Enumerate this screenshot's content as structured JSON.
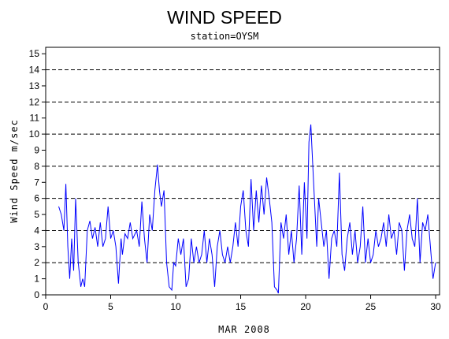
{
  "chart_data": {
    "type": "line",
    "title": "WIND SPEED",
    "subtitle": "station=OYSM",
    "xlabel": "MAR 2008",
    "ylabel": "Wind Speed m/sec",
    "xlim": [
      0,
      30.3
    ],
    "ylim": [
      0,
      15.4
    ],
    "x_ticks": [
      0,
      5,
      10,
      15,
      20,
      25,
      30
    ],
    "y_ticks": [
      0,
      1,
      2,
      3,
      4,
      5,
      6,
      7,
      8,
      9,
      10,
      11,
      12,
      13,
      14,
      15
    ],
    "grid_y_dashed": [
      0,
      2,
      4,
      6,
      8,
      10,
      12,
      14
    ],
    "line_color": "#0000ff",
    "series": [
      {
        "x": [
          1.0,
          1.2,
          1.4,
          1.55,
          1.7,
          1.85,
          2.0,
          2.15,
          2.3,
          2.5,
          2.7,
          2.85,
          3.0,
          3.2,
          3.4,
          3.6,
          3.8,
          4.0,
          4.2,
          4.4,
          4.6,
          4.8,
          5.0,
          5.2,
          5.4,
          5.6,
          5.8,
          5.9,
          6.1,
          6.3,
          6.5,
          6.7,
          7.0,
          7.2,
          7.4,
          7.6,
          7.8,
          8.0,
          8.2,
          8.4,
          8.6,
          8.75,
          8.9,
          9.1,
          9.3,
          9.5,
          9.7,
          9.85,
          10.0,
          10.2,
          10.4,
          10.6,
          10.8,
          11.0,
          11.2,
          11.4,
          11.6,
          11.8,
          12.0,
          12.2,
          12.4,
          12.6,
          12.8,
          13.0,
          13.2,
          13.4,
          13.6,
          13.8,
          14.0,
          14.2,
          14.4,
          14.6,
          14.8,
          15.0,
          15.2,
          15.4,
          15.6,
          15.8,
          16.0,
          16.2,
          16.4,
          16.6,
          16.8,
          17.0,
          17.2,
          17.4,
          17.6,
          17.8,
          17.9,
          18.1,
          18.3,
          18.5,
          18.7,
          18.9,
          19.1,
          19.3,
          19.5,
          19.7,
          19.9,
          20.1,
          20.25,
          20.4,
          20.55,
          20.7,
          20.85,
          21.0,
          21.2,
          21.4,
          21.6,
          21.8,
          22.0,
          22.2,
          22.4,
          22.6,
          22.8,
          23.0,
          23.2,
          23.4,
          23.6,
          23.8,
          24.0,
          24.2,
          24.4,
          24.6,
          24.8,
          25.0,
          25.2,
          25.4,
          25.6,
          25.8,
          26.0,
          26.2,
          26.4,
          26.6,
          26.8,
          27.0,
          27.2,
          27.4,
          27.6,
          27.8,
          28.0,
          28.2,
          28.4,
          28.6,
          28.8,
          29.0,
          29.2,
          29.4,
          29.6,
          29.8,
          30.0
        ],
        "y": [
          5.5,
          5.0,
          4.0,
          6.9,
          3.0,
          1.0,
          3.5,
          1.5,
          6.0,
          2.0,
          0.5,
          1.0,
          0.5,
          4.0,
          4.6,
          3.5,
          4.2,
          3.0,
          4.5,
          3.0,
          3.5,
          5.5,
          3.5,
          4.0,
          3.0,
          0.7,
          3.5,
          2.5,
          3.8,
          3.5,
          4.5,
          3.5,
          4.0,
          3.0,
          5.8,
          3.5,
          2.0,
          5.0,
          4.0,
          6.5,
          8.1,
          6.5,
          5.5,
          6.5,
          2.0,
          0.5,
          0.3,
          2.0,
          1.8,
          3.5,
          2.5,
          3.5,
          0.5,
          1.0,
          3.5,
          2.0,
          3.0,
          2.0,
          2.5,
          4.0,
          2.0,
          3.5,
          2.5,
          0.5,
          3.0,
          4.0,
          2.5,
          2.0,
          3.0,
          2.0,
          3.0,
          4.5,
          3.0,
          5.5,
          6.5,
          4.0,
          3.0,
          7.2,
          4.0,
          6.5,
          4.5,
          6.8,
          5.0,
          7.3,
          6.0,
          4.5,
          0.5,
          0.3,
          0.1,
          4.5,
          3.5,
          5.0,
          2.5,
          4.0,
          2.0,
          3.5,
          6.8,
          2.5,
          7.0,
          3.5,
          9.5,
          10.6,
          8.0,
          5.5,
          3.0,
          6.0,
          4.5,
          3.0,
          4.0,
          1.0,
          3.5,
          4.0,
          3.0,
          7.6,
          2.5,
          1.5,
          3.5,
          4.5,
          2.5,
          4.0,
          2.0,
          3.0,
          5.5,
          2.0,
          3.5,
          2.0,
          2.5,
          4.0,
          3.0,
          3.5,
          4.5,
          3.0,
          5.0,
          3.5,
          4.0,
          2.5,
          4.5,
          4.0,
          1.5,
          4.0,
          5.0,
          3.5,
          3.0,
          6.0,
          2.0,
          4.5,
          4.0,
          5.0,
          3.0,
          1.0,
          2.0
        ]
      }
    ]
  }
}
